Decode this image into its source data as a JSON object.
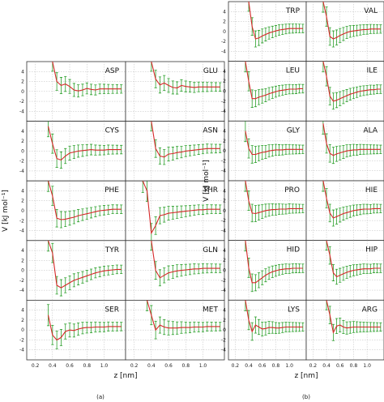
{
  "figure": {
    "panel_labels": [
      "(a)",
      "(b)"
    ]
  },
  "chart_data": [
    {
      "type": "line",
      "panel": "(a)",
      "xlabel": "z [nm]",
      "ylabel": "V [kJ mol⁻¹]",
      "xlim": [
        0.1,
        1.25
      ],
      "ylim": [
        -6,
        6
      ],
      "xticks": [
        "0.2",
        "0.4",
        "0.6",
        "0.8",
        "1.0"
      ],
      "yticks": [
        "4",
        "2",
        "0",
        "-2",
        "-4"
      ],
      "grid": true,
      "series_colors": {
        "curve": "#d62728",
        "errorbars": "#2ca02c"
      },
      "x": [
        0.3,
        0.35,
        0.4,
        0.45,
        0.5,
        0.55,
        0.6,
        0.65,
        0.7,
        0.75,
        0.8,
        0.85,
        0.9,
        0.95,
        1.0,
        1.05,
        1.1,
        1.15,
        1.2
      ],
      "subplots": [
        {
          "name": "ASP",
          "values": [
            null,
            null,
            6,
            2.0,
            1.2,
            1.5,
            1.0,
            0.3,
            0.1,
            0.3,
            0.6,
            0.4,
            0.3,
            0.5,
            0.5,
            0.5,
            0.5,
            0.5,
            0.5
          ]
        },
        {
          "name": "GLU",
          "values": [
            null,
            null,
            6,
            2.5,
            1.3,
            1.7,
            1.2,
            0.8,
            0.7,
            1.2,
            1.0,
            0.9,
            0.8,
            0.9,
            0.9,
            0.9,
            0.9,
            0.9,
            0.9
          ]
        },
        {
          "name": "CYS",
          "values": [
            null,
            5,
            1.5,
            -1.5,
            -1.8,
            -1.0,
            -0.4,
            -0.2,
            0.0,
            0.1,
            0.2,
            0.3,
            0.2,
            0.2,
            0.2,
            0.3,
            0.3,
            0.3,
            0.3
          ]
        },
        {
          "name": "ASN",
          "values": [
            null,
            null,
            6,
            0.5,
            -1.0,
            -1.2,
            -0.6,
            -0.5,
            -0.3,
            -0.2,
            0.0,
            0.1,
            0.2,
            0.3,
            0.4,
            0.5,
            0.5,
            0.5,
            0.5
          ]
        },
        {
          "name": "PHE",
          "values": [
            null,
            6,
            3.0,
            -1.5,
            -1.8,
            -1.7,
            -1.5,
            -1.3,
            -1.0,
            -0.8,
            -0.6,
            -0.4,
            -0.2,
            0.0,
            0.1,
            0.2,
            0.3,
            0.3,
            0.3
          ]
        },
        {
          "name": "THR",
          "values": [
            6,
            4.0,
            -4.5,
            -3.0,
            -1.0,
            -0.8,
            -0.5,
            -0.4,
            -0.3,
            -0.2,
            -0.1,
            0.0,
            0.1,
            0.2,
            0.2,
            0.3,
            0.3,
            0.3,
            0.3
          ]
        },
        {
          "name": "TYR",
          "values": [
            null,
            6,
            3.5,
            -3.0,
            -3.5,
            -3.0,
            -2.5,
            -2.0,
            -1.7,
            -1.4,
            -1.1,
            -0.8,
            -0.5,
            -0.3,
            -0.1,
            0.0,
            0.1,
            0.2,
            0.2
          ]
        },
        {
          "name": "GLN",
          "values": [
            null,
            null,
            6,
            0.0,
            -1.5,
            -1.0,
            -0.5,
            -0.3,
            -0.1,
            0.0,
            0.1,
            0.2,
            0.3,
            0.3,
            0.4,
            0.4,
            0.4,
            0.4,
            0.4
          ]
        },
        {
          "name": "SER",
          "values": [
            null,
            3.0,
            -1.0,
            -2.0,
            -1.5,
            -0.3,
            0.0,
            -0.1,
            0.2,
            0.4,
            0.5,
            0.5,
            0.6,
            0.6,
            0.6,
            0.7,
            0.7,
            0.7,
            0.7
          ]
        },
        {
          "name": "MET",
          "values": [
            null,
            6,
            3.0,
            0.0,
            1.0,
            0.6,
            0.4,
            0.4,
            0.4,
            0.5,
            0.5,
            0.5,
            0.6,
            0.6,
            0.6,
            0.7,
            0.7,
            0.7,
            0.7
          ]
        }
      ]
    },
    {
      "type": "line",
      "panel": "(b)",
      "xlabel": "z [nm]",
      "ylabel": "V [kJ mol⁻¹]",
      "xlim": [
        0.1,
        1.25
      ],
      "ylim": [
        -6,
        6
      ],
      "xticks": [
        "0.2",
        "0.4",
        "0.6",
        "0.8",
        "1.0"
      ],
      "yticks": [
        "4",
        "2",
        "0",
        "-2",
        "-4"
      ],
      "grid": true,
      "series_colors": {
        "curve": "#d62728",
        "errorbars": "#2ca02c"
      },
      "x": [
        0.3,
        0.35,
        0.4,
        0.45,
        0.5,
        0.55,
        0.6,
        0.65,
        0.7,
        0.75,
        0.8,
        0.85,
        0.9,
        0.95,
        1.0,
        1.05,
        1.1,
        1.15,
        1.2
      ],
      "subplots": [
        {
          "name": "TRP",
          "values": [
            null,
            null,
            6,
            1.0,
            -1.5,
            -1.3,
            -0.9,
            -0.6,
            -0.3,
            -0.1,
            0.1,
            0.3,
            0.4,
            0.5,
            0.6,
            0.6,
            0.6,
            0.6,
            0.6
          ]
        },
        {
          "name": "VAL",
          "values": [
            null,
            6,
            3.0,
            -1.0,
            -1.5,
            -1.2,
            -0.8,
            -0.5,
            -0.2,
            0.0,
            0.1,
            0.2,
            0.3,
            0.4,
            0.4,
            0.5,
            0.5,
            0.5,
            0.5
          ]
        },
        {
          "name": "LEU",
          "values": [
            null,
            6,
            2.0,
            -1.5,
            -1.5,
            -1.2,
            -1.0,
            -0.8,
            -0.5,
            -0.3,
            -0.1,
            0.1,
            0.2,
            0.3,
            0.4,
            0.4,
            0.4,
            0.5,
            0.5
          ]
        },
        {
          "name": "ILE",
          "values": [
            null,
            6,
            3.0,
            -1.0,
            -2.0,
            -1.8,
            -1.5,
            -1.2,
            -0.9,
            -0.6,
            -0.4,
            -0.2,
            0.0,
            0.1,
            0.2,
            0.3,
            0.3,
            0.4,
            0.4
          ]
        },
        {
          "name": "GLY",
          "values": [
            null,
            4.0,
            0.5,
            -0.7,
            -0.7,
            -0.5,
            -0.3,
            -0.2,
            0.0,
            0.1,
            0.2,
            0.2,
            0.2,
            0.3,
            0.3,
            0.3,
            0.3,
            0.3,
            0.3
          ]
        },
        {
          "name": "ALA",
          "values": [
            null,
            5.5,
            1.5,
            -0.5,
            -0.9,
            -0.6,
            -0.4,
            -0.2,
            0.0,
            0.1,
            0.2,
            0.2,
            0.3,
            0.3,
            0.3,
            0.3,
            0.3,
            0.3,
            0.3
          ]
        },
        {
          "name": "PRO",
          "values": [
            null,
            6,
            2.0,
            -0.5,
            -0.6,
            -0.4,
            -0.2,
            0.0,
            0.1,
            0.2,
            0.2,
            0.3,
            0.3,
            0.3,
            0.4,
            0.4,
            0.4,
            0.4,
            0.4
          ]
        },
        {
          "name": "HIE",
          "values": [
            null,
            6,
            2.5,
            -0.5,
            -1.5,
            -1.2,
            -0.9,
            -0.6,
            -0.4,
            -0.2,
            0.0,
            0.1,
            0.2,
            0.3,
            0.3,
            0.3,
            0.4,
            0.4,
            0.4
          ]
        },
        {
          "name": "HID",
          "values": [
            null,
            6,
            0.5,
            -2.5,
            -2.5,
            -2.0,
            -1.5,
            -1.0,
            -0.6,
            -0.3,
            -0.1,
            0.1,
            0.2,
            0.3,
            0.3,
            0.4,
            0.4,
            0.4,
            0.4
          ]
        },
        {
          "name": "HIP",
          "values": [
            null,
            null,
            6,
            3.0,
            -0.5,
            -1.3,
            -1.0,
            -0.7,
            -0.4,
            -0.2,
            0.0,
            0.1,
            0.2,
            0.3,
            0.3,
            0.3,
            0.4,
            0.4,
            0.4
          ]
        },
        {
          "name": "LYS",
          "values": [
            null,
            6,
            2.0,
            -0.3,
            1.0,
            0.6,
            0.2,
            0.3,
            0.5,
            0.5,
            0.4,
            0.4,
            0.5,
            0.6,
            0.6,
            0.6,
            0.6,
            0.6,
            0.6
          ]
        },
        {
          "name": "ARG",
          "values": [
            null,
            null,
            6,
            3.0,
            -0.5,
            0.8,
            1.0,
            0.6,
            0.4,
            0.5,
            0.6,
            0.6,
            0.6,
            0.6,
            0.6,
            0.6,
            0.6,
            0.6,
            0.6
          ]
        }
      ]
    }
  ]
}
